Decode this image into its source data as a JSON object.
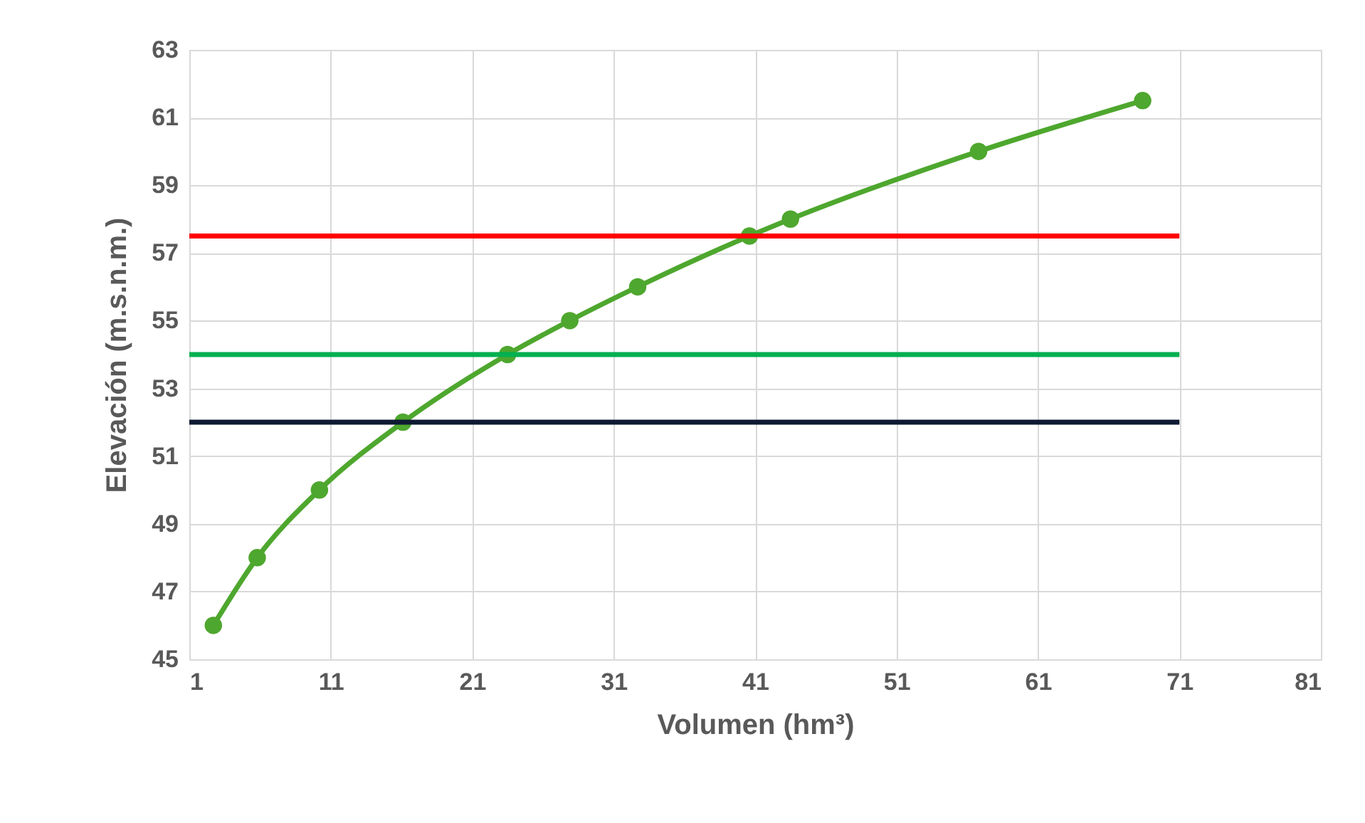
{
  "chart_data": {
    "type": "line",
    "xlabel": "Volumen (hm³)",
    "ylabel": "Elevación (m.s.n.m.)",
    "xlim": [
      1,
      81
    ],
    "xticks": [
      1,
      11,
      21,
      31,
      41,
      51,
      61,
      71,
      81
    ],
    "ylim": [
      45,
      63
    ],
    "yticks": [
      45,
      47,
      49,
      51,
      53,
      55,
      57,
      59,
      61,
      63
    ],
    "grid": true,
    "series": [
      {
        "color": "#4ea72e",
        "marker": "circle",
        "line_style": "solid",
        "x": [
          2.7,
          5.8,
          10.2,
          16.1,
          23.5,
          27.9,
          32.7,
          40.6,
          43.5,
          56.8,
          68.4
        ],
        "values": [
          46,
          48,
          50,
          52,
          54,
          55,
          56,
          57.5,
          58,
          60,
          61.5
        ]
      },
      {
        "color": "#ff0000",
        "marker": "none",
        "line_style": "solid",
        "x": [
          1,
          71
        ],
        "values": [
          57.5,
          57.5
        ]
      },
      {
        "color": "#00b050",
        "marker": "none",
        "line_style": "solid",
        "x": [
          1,
          71
        ],
        "values": [
          54,
          54
        ]
      },
      {
        "color": "#0e1a33",
        "marker": "none",
        "line_style": "solid",
        "x": [
          1,
          71
        ],
        "values": [
          52,
          52
        ]
      }
    ]
  }
}
